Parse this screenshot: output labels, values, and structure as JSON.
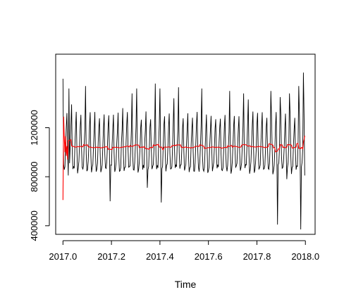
{
  "chart_data": {
    "type": "line",
    "title": "",
    "xlabel": "Time",
    "ylabel": "",
    "xlim": [
      2016.97,
      2018.04
    ],
    "ylim": [
      330000,
      1800000
    ],
    "x_ticks": [
      2017.0,
      2017.2,
      2017.4,
      2017.6,
      2017.8,
      2018.0
    ],
    "x_tick_labels": [
      "2017.0",
      "2017.2",
      "2017.4",
      "2017.6",
      "2017.8",
      "2018.0"
    ],
    "y_ticks": [
      400000,
      800000,
      1200000
    ],
    "y_tick_labels": [
      "400000",
      "800000",
      "1200000"
    ],
    "grid": false,
    "legend": "none",
    "colors": {
      "series": "#000000",
      "smoothed": "#ff0000",
      "frame": "#000000"
    },
    "weekly_profile": [
      1000000,
      850000,
      870000,
      900000,
      1050000,
      1200000,
      1300000
    ],
    "peak_overrides": [
      {
        "index": 0,
        "value": 1600000
      },
      {
        "index": 6,
        "value": 1320000
      },
      {
        "index": 9,
        "value": 1520000
      },
      {
        "index": 13,
        "value": 1390000
      },
      {
        "index": 34,
        "value": 1540000
      },
      {
        "index": 90,
        "value": 1360000
      },
      {
        "index": 104,
        "value": 1480000
      },
      {
        "index": 111,
        "value": 1520000
      },
      {
        "index": 139,
        "value": 1560000
      },
      {
        "index": 146,
        "value": 1520000
      },
      {
        "index": 167,
        "value": 1440000
      },
      {
        "index": 174,
        "value": 1530000
      },
      {
        "index": 209,
        "value": 1520000
      },
      {
        "index": 251,
        "value": 1500000
      },
      {
        "index": 272,
        "value": 1480000
      },
      {
        "index": 279,
        "value": 1430000
      },
      {
        "index": 313,
        "value": 1500000
      },
      {
        "index": 327,
        "value": 1450000
      },
      {
        "index": 341,
        "value": 1480000
      },
      {
        "index": 355,
        "value": 1540000
      },
      {
        "index": 362,
        "value": 1650000
      }
    ],
    "dip_overrides": [
      {
        "index": 1,
        "value": 900000
      },
      {
        "index": 8,
        "value": 810000
      },
      {
        "index": 71,
        "value": 600000
      },
      {
        "index": 127,
        "value": 710000
      },
      {
        "index": 148,
        "value": 590000
      },
      {
        "index": 211,
        "value": 860000
      },
      {
        "index": 323,
        "value": 410000
      },
      {
        "index": 337,
        "value": 780000
      },
      {
        "index": 358,
        "value": 370000
      },
      {
        "index": 364,
        "value": 810000
      }
    ],
    "smoothed_level": 1060000,
    "smoothed_start": [
      {
        "index": 0,
        "value": 610000
      },
      {
        "index": 1,
        "value": 1290000
      },
      {
        "index": 2,
        "value": 1120000
      },
      {
        "index": 3,
        "value": 1000000
      },
      {
        "index": 4,
        "value": 1130000
      },
      {
        "index": 5,
        "value": 970000
      },
      {
        "index": 6,
        "value": 1050000
      },
      {
        "index": 7,
        "value": 940000
      }
    ]
  }
}
